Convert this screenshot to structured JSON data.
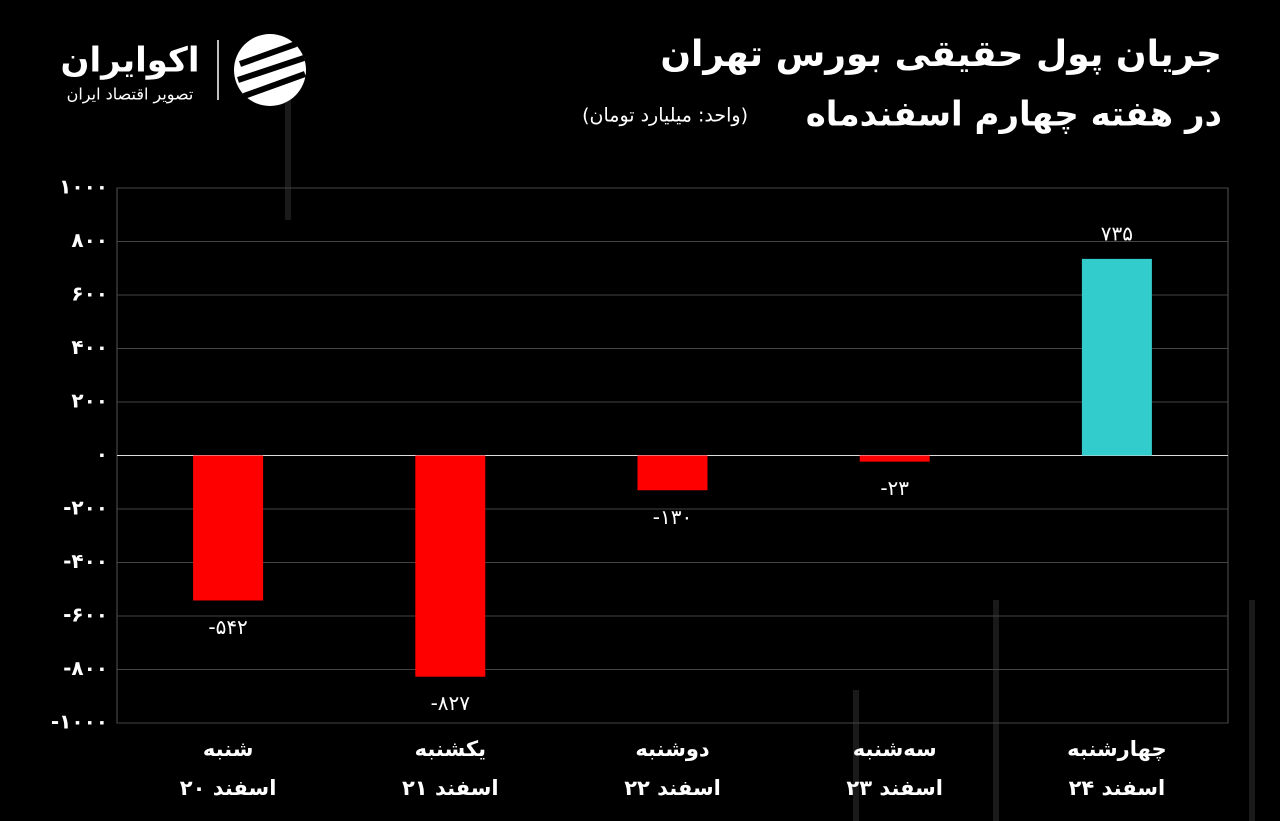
{
  "header": {
    "logo_name": "اکوایران",
    "logo_tagline": "تصویر اقتصاد ایران"
  },
  "chart_data": {
    "type": "bar",
    "title": "جریان پول حقیقی بورس تهران",
    "subtitle": "در هفته چهارم اسفندماه",
    "unit": "(واحد: میلیارد تومان)",
    "categories": [
      "شنبه",
      "یکشنبه",
      "دوشنبه",
      "سه‌شنبه",
      "چهارشنبه"
    ],
    "category_dates": [
      "۲۰ اسفند",
      "۲۱ اسفند",
      "۲۲ اسفند",
      "۲۳ اسفند",
      "۲۴ اسفند"
    ],
    "values": [
      -542,
      -827,
      -130,
      -23,
      735
    ],
    "value_labels": [
      "-۵۴۲",
      "-۸۲۷",
      "-۱۳۰",
      "-۲۳",
      "۷۳۵"
    ],
    "colors": [
      "#ff0000",
      "#ff0000",
      "#ff0000",
      "#ff0000",
      "#33cccc"
    ],
    "ylim": [
      -1000,
      1000
    ],
    "yticks": [
      {
        "value": -1000,
        "label": "-۱۰۰۰"
      },
      {
        "value": -800,
        "label": "-۸۰۰"
      },
      {
        "value": -600,
        "label": "-۶۰۰"
      },
      {
        "value": -400,
        "label": "-۴۰۰"
      },
      {
        "value": -200,
        "label": "-۲۰۰"
      },
      {
        "value": 0,
        "label": "۰"
      },
      {
        "value": 200,
        "label": "۲۰۰"
      },
      {
        "value": 400,
        "label": "۴۰۰"
      },
      {
        "value": 600,
        "label": "۶۰۰"
      },
      {
        "value": 800,
        "label": "۸۰۰"
      },
      {
        "value": 1000,
        "label": "۱۰۰۰"
      }
    ],
    "grid": true
  }
}
